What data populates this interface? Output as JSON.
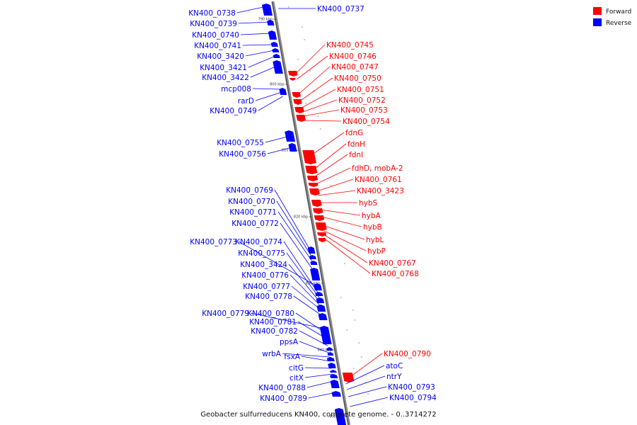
{
  "caption": "Geobacter sulfurreducens KN400, complete genome. - 0..3714272",
  "legend": {
    "forward_label": "Forward",
    "reverse_label": "Reverse",
    "forward_color": "#ff0000",
    "reverse_color": "#0000ff"
  },
  "axis": {
    "ticks": [
      "790 kbp",
      "800 kbp",
      "810 kbp",
      "820 kbp",
      "830 kbp",
      "840 kbp",
      "850 kbp"
    ]
  },
  "genes": {
    "reverse": [
      "KN400_0738",
      "KN400_0739",
      "KN400_0740",
      "KN400_0741",
      "KN400_3420",
      "KN400_3421",
      "KN400_3422",
      "mcp008",
      "rarD",
      "KN400_0749",
      "KN400_0755",
      "KN400_0756",
      "KN400_0769",
      "KN400_0770",
      "KN400_0771",
      "KN400_0772",
      "KN400_0773",
      "KN400_0774",
      "KN400_0775",
      "KN400_3424",
      "KN400_0776",
      "KN400_0777",
      "KN400_0778",
      "KN400_0779",
      "KN400_0780",
      "KN400_0781",
      "KN400_0782",
      "ppsA",
      "wrbA",
      "fsxA",
      "citG",
      "citX",
      "KN400_0788",
      "KN400_0789",
      "KN400_0737",
      "atoC",
      "ntrY",
      "KN400_0793",
      "KN400_0794"
    ],
    "forward": [
      "KN400_0745",
      "KN400_0746",
      "KN400_0747",
      "KN400_0750",
      "KN400_0751",
      "KN400_0752",
      "KN400_0753",
      "KN400_0754",
      "fdnG",
      "fdnH",
      "fdnI",
      "fdhD, mobA-2",
      "KN400_0761",
      "KN400_3423",
      "hybS",
      "hybA",
      "hybB",
      "hybL",
      "hybP",
      "KN400_0767",
      "KN400_0768",
      "KN400_0790"
    ]
  }
}
